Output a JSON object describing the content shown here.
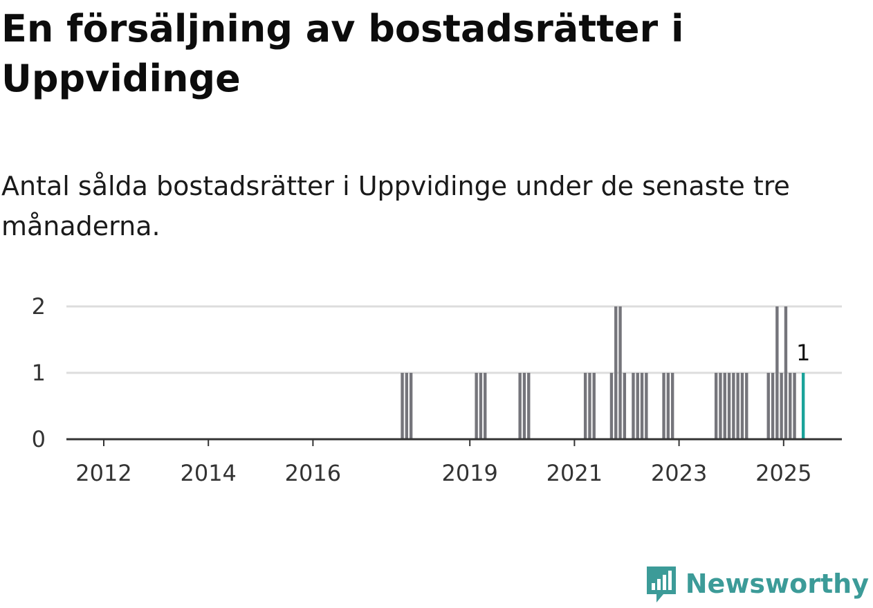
{
  "title": "En försäljning av bostadsrätter i Uppvidinge",
  "subtitle": "Antal sålda bostadsrätter i Uppvidinge under de senaste tre månaderna.",
  "logo": {
    "text": "Newsworthy",
    "icon": "newsworthy-logo-icon"
  },
  "colors": {
    "bar": "#75757b",
    "highlight": "#1aa39a",
    "grid": "#dddddd",
    "axis": "#333333"
  },
  "chart_data": {
    "type": "bar",
    "title": "",
    "xlabel": "",
    "ylabel": "",
    "xlim": [
      "2011-01",
      "2025-12"
    ],
    "ylim": [
      0,
      2
    ],
    "yticks": [
      0,
      1,
      2
    ],
    "xticks": [
      "2012",
      "2014",
      "2016",
      "2019",
      "2021",
      "2023",
      "2025"
    ],
    "grid": true,
    "legend": "none",
    "highlight_label": "1",
    "series": [
      {
        "values": [
          {
            "x": "2017-09",
            "y": 1
          },
          {
            "x": "2017-10",
            "y": 1
          },
          {
            "x": "2017-11",
            "y": 1
          },
          {
            "x": "2019-02",
            "y": 1
          },
          {
            "x": "2019-03",
            "y": 1
          },
          {
            "x": "2019-04",
            "y": 1
          },
          {
            "x": "2019-12",
            "y": 1
          },
          {
            "x": "2020-01",
            "y": 1
          },
          {
            "x": "2020-02",
            "y": 1
          },
          {
            "x": "2021-03",
            "y": 1
          },
          {
            "x": "2021-04",
            "y": 1
          },
          {
            "x": "2021-05",
            "y": 1
          },
          {
            "x": "2021-09",
            "y": 1
          },
          {
            "x": "2021-10",
            "y": 2
          },
          {
            "x": "2021-11",
            "y": 2
          },
          {
            "x": "2021-12",
            "y": 1
          },
          {
            "x": "2022-02",
            "y": 1
          },
          {
            "x": "2022-03",
            "y": 1
          },
          {
            "x": "2022-04",
            "y": 1
          },
          {
            "x": "2022-05",
            "y": 1
          },
          {
            "x": "2022-09",
            "y": 1
          },
          {
            "x": "2022-10",
            "y": 1
          },
          {
            "x": "2022-11",
            "y": 1
          },
          {
            "x": "2023-09",
            "y": 1
          },
          {
            "x": "2023-10",
            "y": 1
          },
          {
            "x": "2023-11",
            "y": 1
          },
          {
            "x": "2023-12",
            "y": 1
          },
          {
            "x": "2024-01",
            "y": 1
          },
          {
            "x": "2024-02",
            "y": 1
          },
          {
            "x": "2024-03",
            "y": 1
          },
          {
            "x": "2024-04",
            "y": 1
          },
          {
            "x": "2024-09",
            "y": 1
          },
          {
            "x": "2024-10",
            "y": 1
          },
          {
            "x": "2024-11",
            "y": 2
          },
          {
            "x": "2024-12",
            "y": 1
          },
          {
            "x": "2025-01",
            "y": 2
          },
          {
            "x": "2025-02",
            "y": 1
          },
          {
            "x": "2025-03",
            "y": 1
          },
          {
            "x": "2025-05",
            "y": 1,
            "highlight": true
          }
        ]
      }
    ]
  }
}
